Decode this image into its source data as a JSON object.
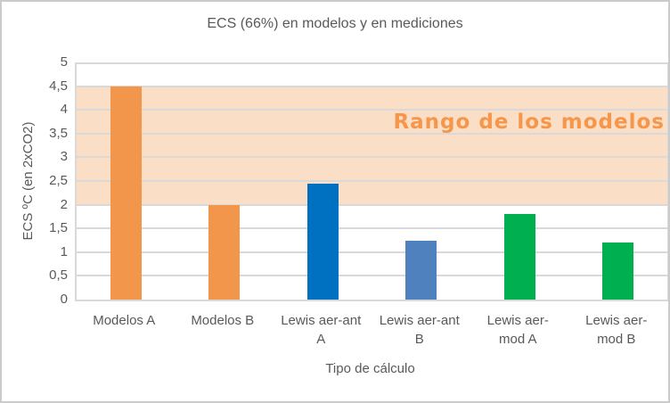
{
  "chart_data": {
    "type": "bar",
    "title": "ECS (66%) en modelos y en mediciones",
    "xlabel": "Tipo de cálculo",
    "ylabel": "ECS ºC (en 2xCO2)",
    "categories": [
      "Modelos A",
      "Modelos B",
      "Lewis aer-ant A",
      "Lewis aer-ant B",
      "Lewis aer-mod A",
      "Lewis aer-mod B"
    ],
    "categories_wrapped": [
      "Modelos A",
      "Modelos B",
      "Lewis aer-ant\nA",
      "Lewis aer-ant\nB",
      "Lewis aer-\nmod A",
      "Lewis aer-\nmod B"
    ],
    "values": [
      4.5,
      2.0,
      2.45,
      1.25,
      1.8,
      1.2
    ],
    "bar_colors": [
      "#F2964B",
      "#F2964B",
      "#0070C0",
      "#4E81BD",
      "#00B050",
      "#00B050"
    ],
    "ylim": [
      0,
      5
    ],
    "ytick_step": 0.5,
    "ytick_labels": [
      "0",
      "0,5",
      "1",
      "1,5",
      "2",
      "2,5",
      "3",
      "3,5",
      "4",
      "4,5",
      "5"
    ],
    "grid": true,
    "gridline_color": "#D9D9D9",
    "text_color": "#595959",
    "legend": "none",
    "band": {
      "label": "Rango de los modelos",
      "from": 2.0,
      "to": 4.5,
      "fill": "#FADEC5",
      "label_color": "#F5964A",
      "label_center_value": 3.75
    }
  }
}
